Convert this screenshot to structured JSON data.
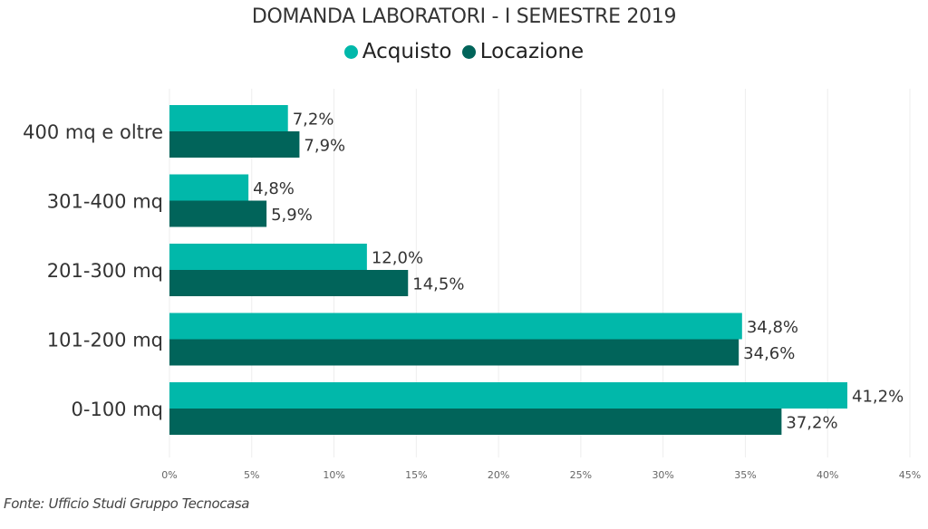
{
  "chart_data": {
    "type": "bar",
    "orientation": "horizontal",
    "title": "DOMANDA LABORATORI - I SEMESTRE 2019",
    "categories": [
      "400 mq e oltre",
      "301-400 mq",
      "201-300 mq",
      "101-200 mq",
      "0-100 mq"
    ],
    "series": [
      {
        "name": "Acquisto",
        "color": "#01B8AA",
        "values": [
          7.2,
          4.8,
          12.0,
          34.8,
          41.2
        ],
        "labels": [
          "7,2%",
          "4,8%",
          "12,0%",
          "34,8%",
          "41,2%"
        ]
      },
      {
        "name": "Locazione",
        "color": "#01645A",
        "values": [
          7.9,
          5.9,
          14.5,
          34.6,
          37.2
        ],
        "labels": [
          "7,9%",
          "5,9%",
          "14,5%",
          "34,6%",
          "37,2%"
        ]
      }
    ],
    "xlim": [
      0,
      45
    ],
    "xticks": [
      0,
      5,
      10,
      15,
      20,
      25,
      30,
      35,
      40,
      45
    ],
    "xtick_labels": [
      "0%",
      "5%",
      "10%",
      "15%",
      "20%",
      "25%",
      "30%",
      "35%",
      "40%",
      "45%"
    ],
    "xlabel": "",
    "ylabel": "",
    "grid": true,
    "legend_position": "top-center"
  },
  "footer": "Fonte: Ufficio Studi Gruppo Tecnocasa"
}
